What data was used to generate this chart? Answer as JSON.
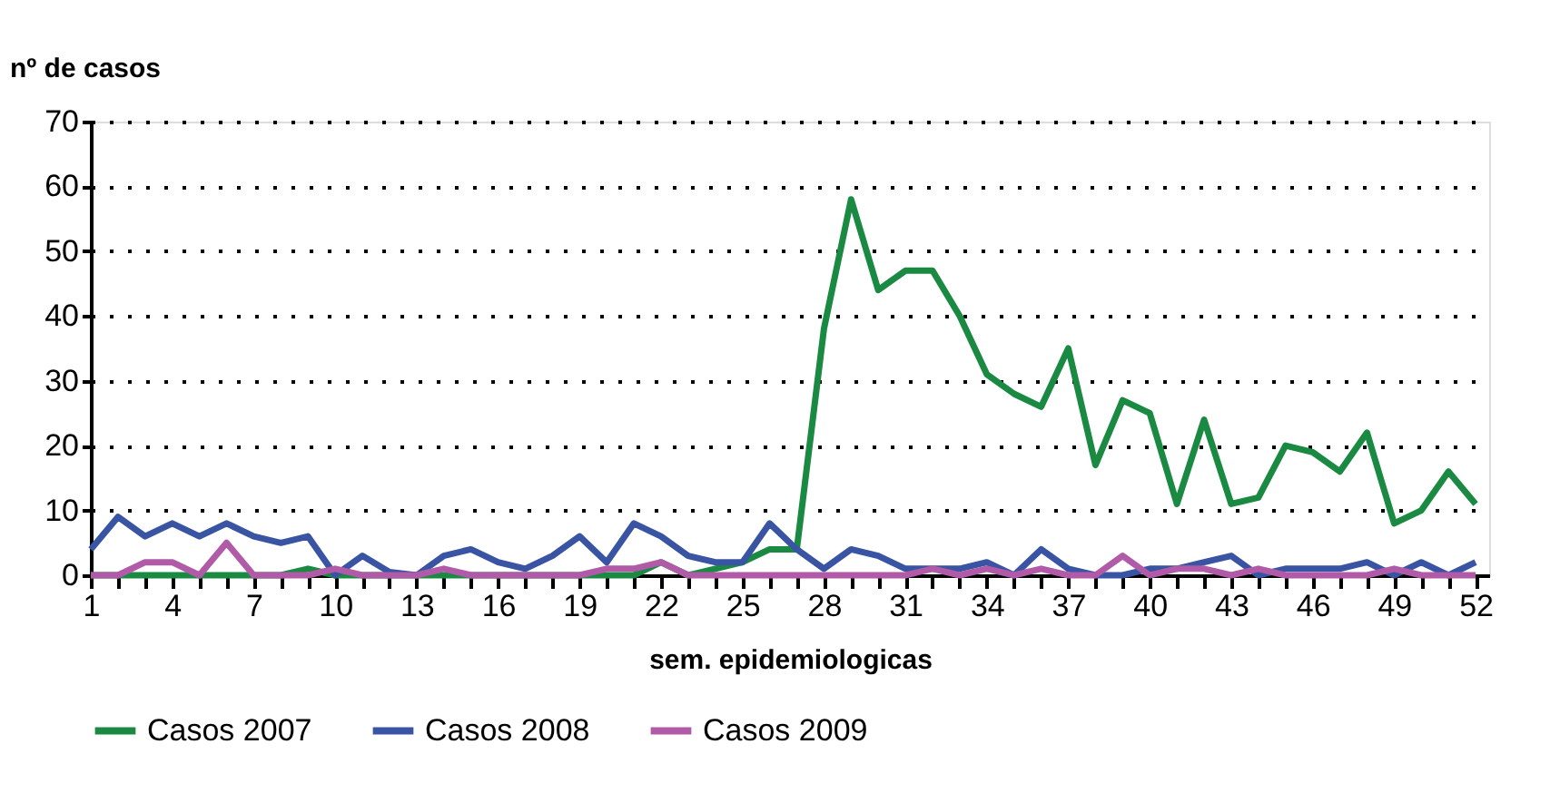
{
  "chart_data": {
    "type": "line",
    "ylabel": "nº de casos",
    "xlabel": "sem. epidemiologicas",
    "x": [
      1,
      2,
      3,
      4,
      5,
      6,
      7,
      8,
      9,
      10,
      11,
      12,
      13,
      14,
      15,
      16,
      17,
      18,
      19,
      20,
      21,
      22,
      23,
      24,
      25,
      26,
      27,
      28,
      29,
      30,
      31,
      32,
      33,
      34,
      35,
      36,
      37,
      38,
      39,
      40,
      41,
      42,
      43,
      44,
      45,
      46,
      47,
      48,
      49,
      50,
      51,
      52
    ],
    "series": [
      {
        "name": "Casos 2007",
        "color": "#1a8a43",
        "values": [
          0,
          0,
          0,
          0,
          0,
          0,
          0,
          0,
          1,
          0,
          0,
          0,
          0,
          0,
          0,
          0,
          0,
          0,
          0,
          0,
          0,
          2,
          0,
          1,
          2,
          4,
          4,
          38,
          58,
          44,
          47,
          47,
          40,
          31,
          28,
          26,
          35,
          17,
          27,
          25,
          11,
          24,
          11,
          12,
          20,
          19,
          16,
          22,
          8,
          10,
          16,
          11
        ]
      },
      {
        "name": "Casos 2008",
        "color": "#3a54a4",
        "values": [
          4,
          9,
          6,
          8,
          6,
          8,
          6,
          5,
          6,
          0,
          3,
          0.5,
          0,
          3,
          4,
          2,
          1,
          3,
          6,
          2,
          8,
          6,
          3,
          2,
          2,
          8,
          4,
          1,
          4,
          3,
          1,
          1,
          1,
          2,
          0,
          4,
          1,
          0,
          0,
          1,
          1,
          2,
          3,
          0,
          1,
          1,
          1,
          2,
          0,
          2,
          0,
          2
        ]
      },
      {
        "name": "Casos 2009",
        "color": "#b05aa8",
        "values": [
          0,
          0,
          2,
          2,
          0,
          5,
          0,
          0,
          0,
          1,
          0,
          0,
          0,
          1,
          0,
          0,
          0,
          0,
          0,
          1,
          1,
          2,
          0,
          0,
          0,
          0,
          0,
          0,
          0,
          0,
          0,
          1,
          0,
          1,
          0,
          1,
          0,
          0,
          3,
          0,
          1,
          1,
          0,
          1,
          0,
          0,
          0,
          0,
          1,
          0,
          0,
          0
        ]
      }
    ],
    "xlim": [
      1,
      52.5
    ],
    "xticks": [
      1,
      {
        "value": 2,
        "label": null
      },
      {
        "value": 3,
        "label": null
      },
      4,
      {
        "value": 5,
        "label": null
      },
      {
        "value": 6,
        "label": null
      },
      7,
      {
        "value": 8,
        "label": null
      },
      {
        "value": 9,
        "label": null
      },
      10,
      {
        "value": 11,
        "label": null
      },
      {
        "value": 12,
        "label": null
      },
      13,
      {
        "value": 14,
        "label": null
      },
      {
        "value": 15,
        "label": null
      },
      16,
      {
        "value": 17,
        "label": null
      },
      {
        "value": 18,
        "label": null
      },
      19,
      {
        "value": 20,
        "label": null
      },
      {
        "value": 21,
        "label": null
      },
      22,
      {
        "value": 23,
        "label": null
      },
      {
        "value": 24,
        "label": null
      },
      25,
      {
        "value": 26,
        "label": null
      },
      {
        "value": 27,
        "label": null
      },
      28,
      {
        "value": 29,
        "label": null
      },
      {
        "value": 30,
        "label": null
      },
      31,
      {
        "value": 32,
        "label": null
      },
      {
        "value": 33,
        "label": null
      },
      34,
      {
        "value": 35,
        "label": null
      },
      {
        "value": 36,
        "label": null
      },
      37,
      {
        "value": 38,
        "label": null
      },
      {
        "value": 39,
        "label": null
      },
      40,
      {
        "value": 41,
        "label": null
      },
      {
        "value": 42,
        "label": null
      },
      43,
      {
        "value": 44,
        "label": null
      },
      {
        "value": 45,
        "label": null
      },
      46,
      {
        "value": 47,
        "label": null
      },
      {
        "value": 48,
        "label": null
      },
      49,
      {
        "value": 50,
        "label": null
      },
      {
        "value": 51,
        "label": null
      },
      52
    ],
    "ylim": [
      0,
      70
    ],
    "yticks": [
      0,
      10,
      20,
      30,
      40,
      50,
      60,
      70
    ],
    "grid": "y",
    "legend": "bottom",
    "line_style": "solid",
    "marker": "none"
  }
}
